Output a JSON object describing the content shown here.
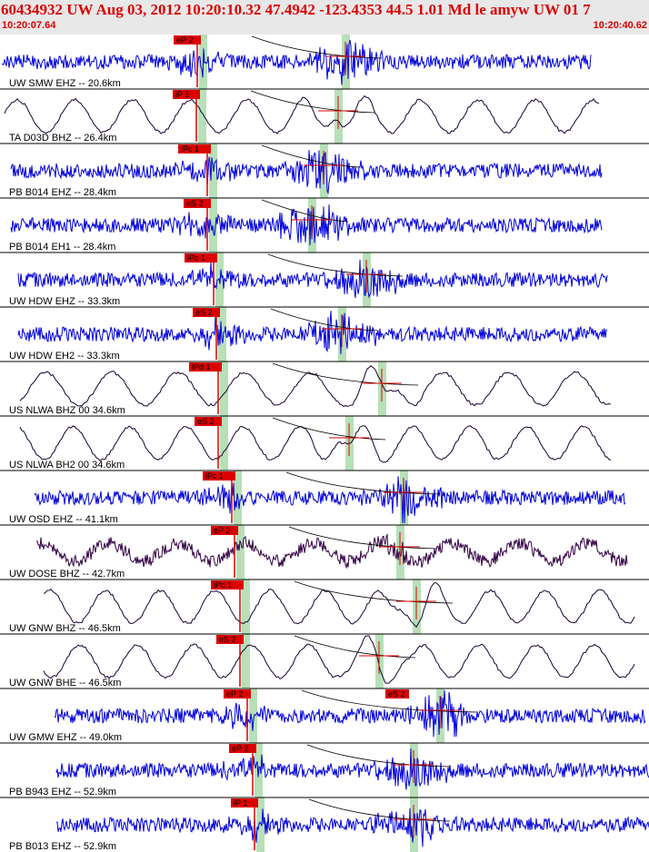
{
  "header": {
    "title": "60434932 UW Aug 03, 2012 10:20:10.32    47.4942 -123.4353 44.5 1.01 Md le amyw UW 01    7",
    "start_time": "10:20:07.64",
    "end_time": "10:20:40.62"
  },
  "colors": {
    "header_bg": "#e8e8e8",
    "header_text": "#dd0000",
    "trace_blue": "#0000dd",
    "trace_dark": "#1a0033",
    "trace_purple": "#330044",
    "pick_marker": "#dd0000",
    "pick_band": "#b7e0b7",
    "divider": "#000000"
  },
  "traces": [
    {
      "label": "UW SMW EHZ -- 20.6km",
      "pick": "eP 2",
      "style": "hf",
      "color": "#0000dd"
    },
    {
      "label": "TA D03D BHZ -- 26.4km",
      "pick": "iP 1",
      "style": "lf",
      "color": "#1a0033"
    },
    {
      "label": "PB B014 EHZ -- 28.4km",
      "pick": "iPc 1",
      "style": "hf",
      "color": "#0000dd"
    },
    {
      "label": "PB B014 EH1 -- 28.4km",
      "pick": "eS 2",
      "style": "hf",
      "color": "#0000dd"
    },
    {
      "label": "UW HDW EHZ -- 33.3km",
      "pick": "iPc 1",
      "style": "hf",
      "color": "#0000dd"
    },
    {
      "label": "UW HDW EH2 -- 33.3km",
      "pick": "eS 2",
      "style": "hf",
      "color": "#0000dd"
    },
    {
      "label": "US NLWA BHZ 00 34.6km",
      "pick": "iPd 1",
      "style": "lf",
      "color": "#1a0033"
    },
    {
      "label": "US NLWA BH2 00 34.6km",
      "pick": "eS 2",
      "style": "lf",
      "color": "#1a0033"
    },
    {
      "label": "UW OSD EHZ -- 41.1km",
      "pick": "iPc 1",
      "style": "hf",
      "color": "#0000dd"
    },
    {
      "label": "UW DOSE BHZ -- 42.7km",
      "pick": "eP 2",
      "style": "mix",
      "color": "#330044"
    },
    {
      "label": "UW GNW BHZ -- 46.5km",
      "pick": "iPc 1",
      "style": "lf",
      "color": "#1a0033"
    },
    {
      "label": "UW GNW BHE -- 46.5km",
      "pick": "eS 2",
      "style": "lf",
      "color": "#1a0033"
    },
    {
      "label": "UW GMW EHZ -- 49.0km",
      "pick": "eP 2",
      "pick2": "eS 2",
      "style": "hf",
      "color": "#0000dd"
    },
    {
      "label": "PB B943 EHZ -- 52.9km",
      "pick": "eP 2",
      "style": "hf",
      "color": "#0000dd"
    },
    {
      "label": "PB B013 EHZ -- 52.9km",
      "pick": "iP 1",
      "style": "hf",
      "color": "#0000dd"
    }
  ]
}
